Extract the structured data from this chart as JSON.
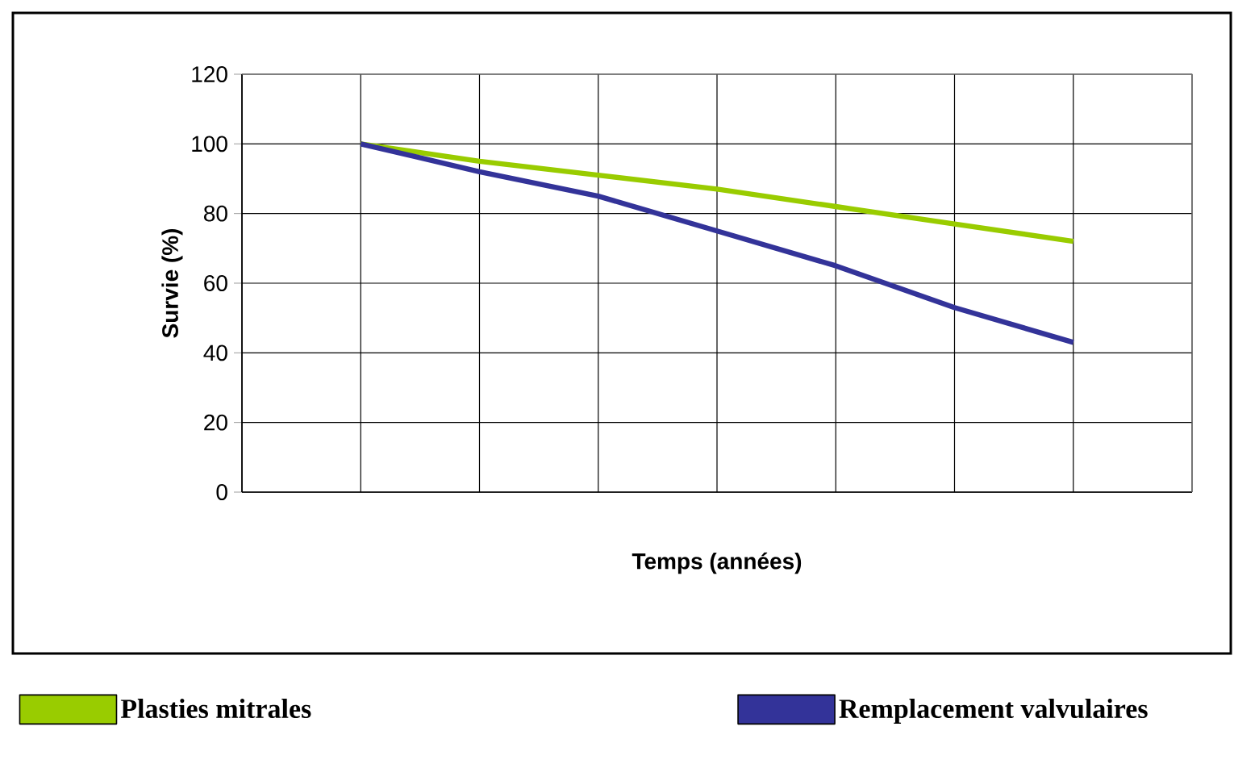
{
  "chart_data": {
    "type": "line",
    "xlabel": "Temps (années)",
    "ylabel": "Survie (%)",
    "categories": [
      null,
      null,
      null,
      null,
      null,
      null,
      null,
      null,
      null
    ],
    "ylim": [
      0,
      120
    ],
    "yticks": [
      0,
      20,
      40,
      60,
      80,
      100,
      120
    ],
    "series": [
      {
        "name": "Plasties mitrales",
        "color": "#99cc00",
        "values": [
          null,
          100,
          95,
          91,
          87,
          82,
          77,
          72,
          null
        ]
      },
      {
        "name": "Remplacement valvulaires",
        "color": "#333399",
        "values": [
          null,
          100,
          92,
          85,
          75,
          65,
          53,
          43,
          null
        ]
      }
    ],
    "grid": true,
    "legend": "bottom",
    "tick_labels": "y"
  }
}
